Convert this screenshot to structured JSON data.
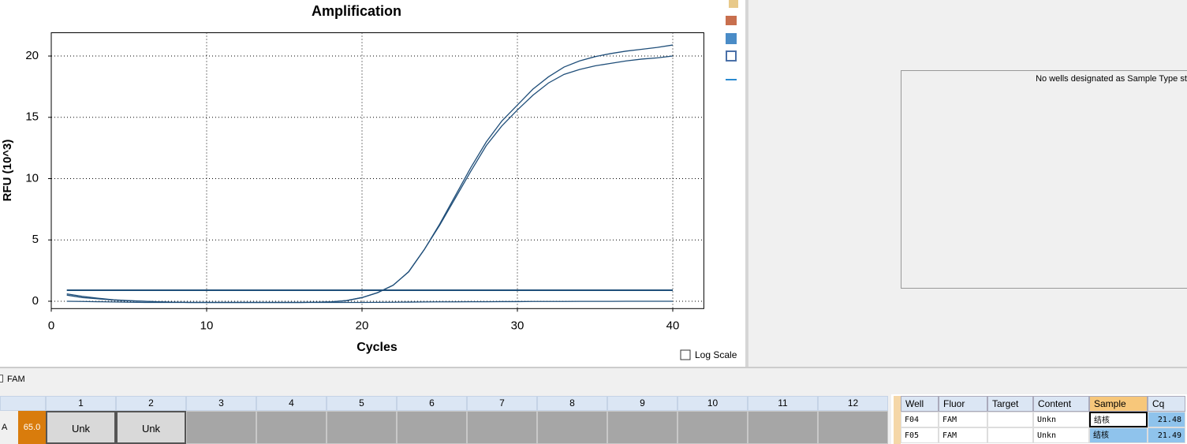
{
  "chart_data": {
    "type": "line",
    "title": "Amplification",
    "xlabel": "Cycles",
    "ylabel": "RFU (10^3)",
    "x": [
      1,
      2,
      3,
      4,
      5,
      6,
      7,
      8,
      9,
      10,
      11,
      12,
      13,
      14,
      15,
      16,
      17,
      18,
      19,
      20,
      21,
      22,
      23,
      24,
      25,
      26,
      27,
      28,
      29,
      30,
      31,
      32,
      33,
      34,
      35,
      36,
      37,
      38,
      39,
      40
    ],
    "series": [
      {
        "color": "#1f4e79",
        "values": [
          0.6,
          0.4,
          0.25,
          0.12,
          0.05,
          0,
          -0.05,
          -0.08,
          -0.1,
          -0.1,
          -0.1,
          -0.1,
          -0.1,
          -0.1,
          -0.1,
          -0.1,
          -0.08,
          -0.05,
          0.05,
          0.3,
          0.7,
          1.3,
          2.4,
          4.2,
          6.3,
          8.6,
          10.9,
          13,
          14.7,
          16,
          17.3,
          18.3,
          19.1,
          19.6,
          19.95,
          20.2,
          20.4,
          20.55,
          20.7,
          20.9
        ]
      },
      {
        "color": "#1f4e79",
        "values": [
          0.5,
          0.3,
          0.2,
          0.1,
          0.04,
          0,
          -0.05,
          -0.08,
          -0.1,
          -0.1,
          -0.1,
          -0.1,
          -0.1,
          -0.1,
          -0.1,
          -0.1,
          -0.08,
          -0.05,
          0.05,
          0.3,
          0.7,
          1.3,
          2.4,
          4.2,
          6.2,
          8.4,
          10.6,
          12.7,
          14.3,
          15.6,
          16.8,
          17.8,
          18.5,
          18.9,
          19.2,
          19.4,
          19.6,
          19.75,
          19.85,
          20
        ]
      },
      {
        "color": "#1f4e79",
        "values": [
          0,
          -0.02,
          -0.04,
          -0.06,
          -0.08,
          -0.1,
          -0.1,
          -0.1,
          -0.1,
          -0.1,
          -0.1,
          -0.1,
          -0.1,
          -0.1,
          -0.1,
          -0.1,
          -0.1,
          -0.1,
          -0.1,
          -0.1,
          -0.09,
          -0.08,
          -0.07,
          -0.06,
          -0.05,
          -0.05,
          -0.04,
          -0.04,
          -0.03,
          -0.03,
          -0.02,
          -0.02,
          -0.02,
          -0.01,
          -0.01,
          -0.01,
          0,
          0,
          0,
          0
        ]
      }
    ],
    "threshold": 0.9,
    "threshold_color": "#1f4e79",
    "xlim": [
      0,
      42
    ],
    "ylim": [
      -0.6,
      21.9
    ],
    "xticks": [
      0,
      10,
      20,
      30,
      40
    ],
    "yticks": [
      0,
      5,
      10,
      15,
      20
    ],
    "grid": true,
    "log_scale": false,
    "log_scale_label": "Log Scale"
  },
  "right_panel": {
    "message": "No wells designated as Sample Type sta"
  },
  "fluor_filter": "FAM",
  "plate": {
    "columns": [
      1,
      2,
      3,
      4,
      5,
      6,
      7,
      8,
      9,
      10,
      11,
      12
    ],
    "rows": [
      {
        "label": "A",
        "temp": "65.0",
        "cells": [
          "Unk",
          "Unk"
        ]
      }
    ]
  },
  "well_table": {
    "headers": [
      "Well",
      "Fluor",
      "Target",
      "Content",
      "Sample",
      "Cq"
    ],
    "rows": [
      {
        "well": "F04",
        "fluor": "FAM",
        "content": "Unkn",
        "sample": "结核",
        "cq": "21.48"
      },
      {
        "well": "F05",
        "fluor": "FAM",
        "content": "Unkn",
        "sample": "结核",
        "cq": "21.49"
      }
    ]
  }
}
